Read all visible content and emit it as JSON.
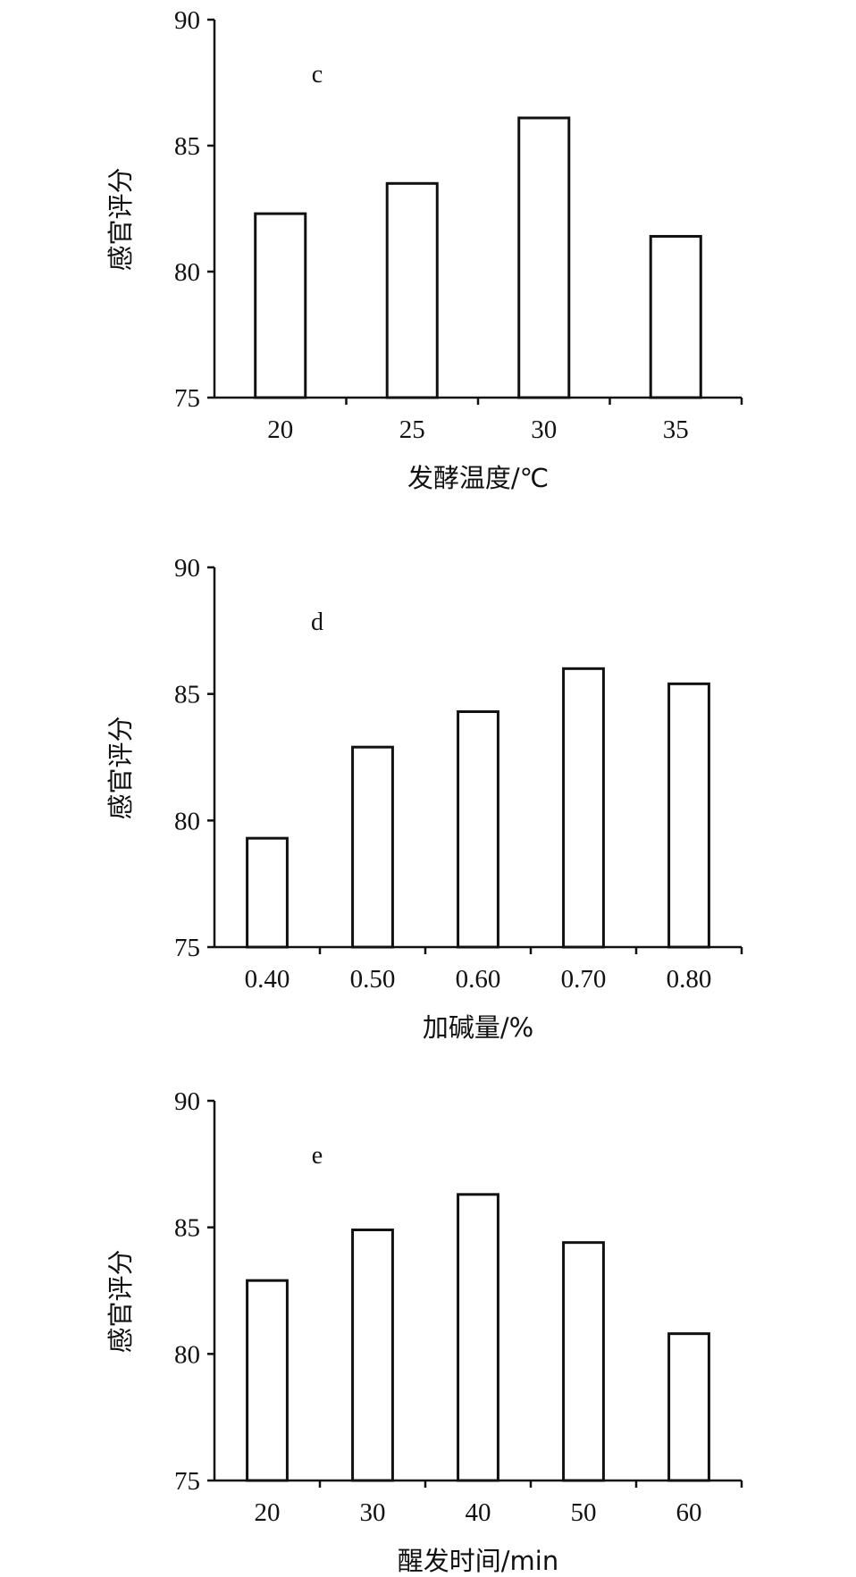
{
  "chart_data": [
    {
      "type": "bar",
      "panel_label": "c",
      "categories": [
        "20",
        "25",
        "30",
        "35"
      ],
      "values": [
        82.3,
        83.5,
        86.1,
        81.4
      ],
      "xlabel": "发酵温度/℃",
      "ylabel": "感官评分",
      "ylim": [
        75,
        90
      ],
      "yticks": [
        "75",
        "80",
        "85",
        "90"
      ],
      "grid": false,
      "bar_fill": "#ffffff",
      "bar_stroke": "#111111"
    },
    {
      "type": "bar",
      "panel_label": "d",
      "categories": [
        "0.40",
        "0.50",
        "0.60",
        "0.70",
        "0.80"
      ],
      "values": [
        79.3,
        82.9,
        84.3,
        86.0,
        85.4
      ],
      "xlabel": "加碱量/%",
      "ylabel": "感官评分",
      "ylim": [
        75,
        90
      ],
      "yticks": [
        "75",
        "80",
        "85",
        "90"
      ],
      "grid": false,
      "bar_fill": "#ffffff",
      "bar_stroke": "#111111"
    },
    {
      "type": "bar",
      "panel_label": "e",
      "categories": [
        "20",
        "30",
        "40",
        "50",
        "60"
      ],
      "values": [
        82.9,
        84.9,
        86.3,
        84.4,
        80.8
      ],
      "xlabel": "醒发时间/min",
      "ylabel": "感官评分",
      "ylim": [
        75,
        90
      ],
      "yticks": [
        "75",
        "80",
        "85",
        "90"
      ],
      "grid": false,
      "bar_fill": "#ffffff",
      "bar_stroke": "#111111"
    }
  ]
}
